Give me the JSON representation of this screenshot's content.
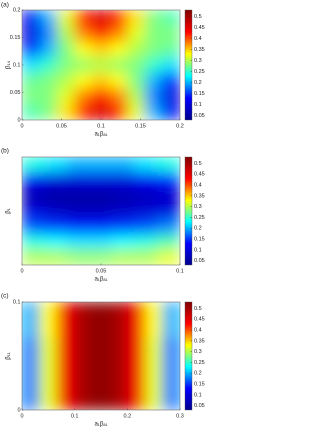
{
  "chart_data": [
    {
      "type": "heatmap",
      "panel_label": "(a)",
      "x_label": "a₁βₐ₁",
      "y_label": "β₁₄",
      "xlim": [
        0,
        0.2
      ],
      "xticks": [
        0,
        0.05,
        0.1,
        0.15,
        0.2
      ],
      "ylim": [
        0,
        0.2
      ],
      "yticks": [
        0,
        0.05,
        0.1,
        0.15,
        0.2
      ],
      "clim": [
        0.03,
        0.53
      ],
      "cticks": [
        0.05,
        0.1,
        0.15,
        0.2,
        0.25,
        0.3,
        0.35,
        0.4,
        0.45,
        0.5
      ],
      "colormap": [
        "#00008f",
        "#0000ff",
        "#00ffff",
        "#ffff00",
        "#ff0000",
        "#800000"
      ],
      "z": [
        [
          0.12,
          0.2,
          0.32,
          0.42,
          0.46,
          0.42,
          0.34,
          0.28,
          0.26
        ],
        [
          0.1,
          0.18,
          0.3,
          0.38,
          0.42,
          0.38,
          0.32,
          0.28,
          0.28
        ],
        [
          0.14,
          0.2,
          0.28,
          0.33,
          0.35,
          0.33,
          0.3,
          0.28,
          0.27
        ],
        [
          0.22,
          0.25,
          0.28,
          0.29,
          0.3,
          0.29,
          0.28,
          0.25,
          0.22
        ],
        [
          0.27,
          0.28,
          0.3,
          0.33,
          0.35,
          0.33,
          0.28,
          0.2,
          0.14
        ],
        [
          0.28,
          0.28,
          0.32,
          0.38,
          0.42,
          0.38,
          0.3,
          0.18,
          0.1
        ],
        [
          0.26,
          0.28,
          0.34,
          0.42,
          0.46,
          0.42,
          0.32,
          0.2,
          0.12
        ]
      ]
    },
    {
      "type": "heatmap",
      "panel_label": "(b)",
      "x_label": "a₁βₐ₁",
      "y_label": "β₁",
      "xlim": [
        0,
        0.1
      ],
      "xticks": [
        0,
        0.05,
        0.1
      ],
      "yticks": [],
      "clim": [
        0.03,
        0.53
      ],
      "cticks": [
        0.05,
        0.1,
        0.15,
        0.2,
        0.25,
        0.3,
        0.35,
        0.4,
        0.45,
        0.5
      ],
      "colormap": [
        "#00008f",
        "#0000ff",
        "#00ffff",
        "#ffff00",
        "#ff0000",
        "#800000"
      ],
      "z": [
        [
          0.24,
          0.22,
          0.2,
          0.2,
          0.2,
          0.22,
          0.24
        ],
        [
          0.12,
          0.1,
          0.1,
          0.1,
          0.1,
          0.12,
          0.14
        ],
        [
          0.06,
          0.05,
          0.05,
          0.05,
          0.06,
          0.07,
          0.08
        ],
        [
          0.1,
          0.08,
          0.07,
          0.07,
          0.08,
          0.09,
          0.1
        ],
        [
          0.16,
          0.15,
          0.14,
          0.14,
          0.15,
          0.16,
          0.18
        ],
        [
          0.24,
          0.23,
          0.22,
          0.22,
          0.23,
          0.24,
          0.26
        ],
        [
          0.3,
          0.3,
          0.29,
          0.29,
          0.3,
          0.3,
          0.32
        ]
      ]
    },
    {
      "type": "heatmap",
      "panel_label": "(c)",
      "x_label": "a₁βₐ₁",
      "y_label": "β₁₁",
      "xlim": [
        0,
        0.3
      ],
      "xticks": [
        0,
        0.1,
        0.2,
        0.3
      ],
      "ylim": [
        0,
        0.1
      ],
      "yticks": [
        0,
        0.1
      ],
      "clim": [
        0.03,
        0.53
      ],
      "cticks": [
        0.05,
        0.1,
        0.15,
        0.2,
        0.25,
        0.3,
        0.35,
        0.4,
        0.45,
        0.5
      ],
      "colormap": [
        "#00008f",
        "#0000ff",
        "#00ffff",
        "#ffff00",
        "#ff0000",
        "#800000"
      ],
      "z": [
        [
          0.2,
          0.33,
          0.44,
          0.5,
          0.52,
          0.5,
          0.44,
          0.33,
          0.2
        ],
        [
          0.18,
          0.32,
          0.44,
          0.5,
          0.52,
          0.5,
          0.44,
          0.32,
          0.18
        ],
        [
          0.18,
          0.32,
          0.44,
          0.5,
          0.52,
          0.5,
          0.44,
          0.32,
          0.18
        ]
      ]
    }
  ]
}
